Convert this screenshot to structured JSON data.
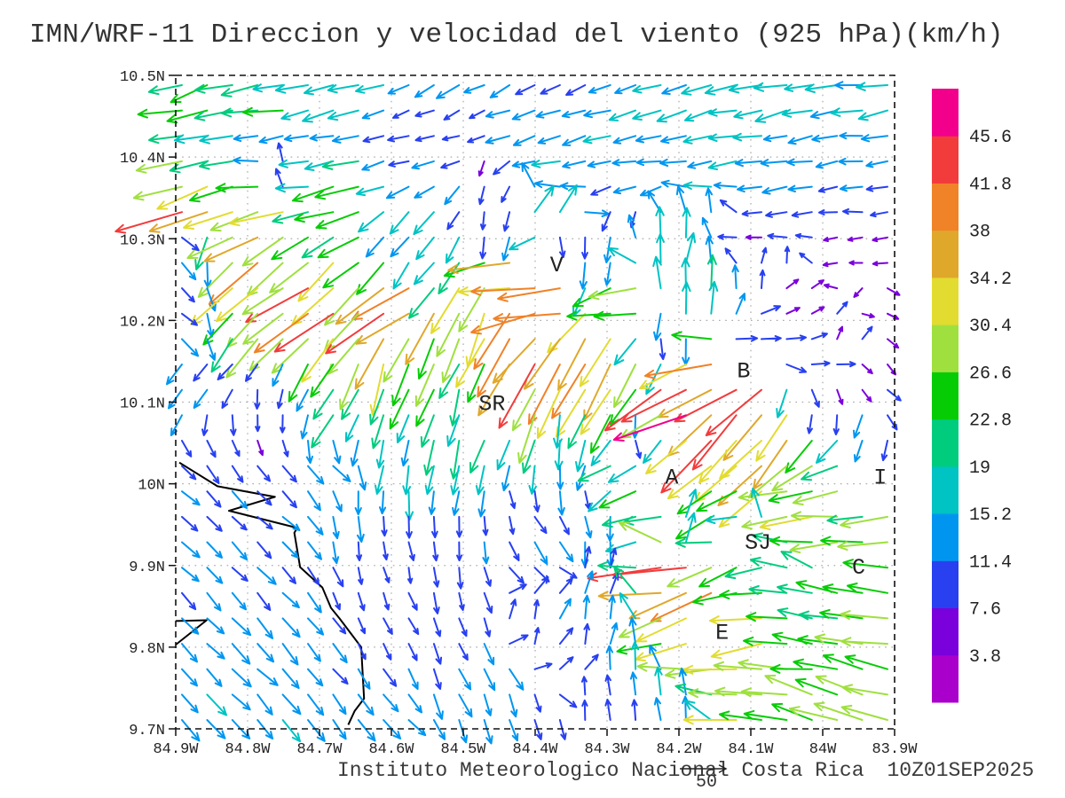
{
  "title": "IMN/WRF-11 Direccion y velocidad del viento (925 hPa)(km/h)",
  "footer": {
    "credit": "Instituto Meteorologico Nacional Costa Rica",
    "datetime": "10Z01SEP2025",
    "reference_value": "50"
  },
  "chart_data": {
    "type": "quiver",
    "model": "IMN/WRF-11",
    "variable": "Direccion y velocidad del viento",
    "level": "925 hPa",
    "units": "km/h",
    "valid_time": "10Z01SEP2025",
    "x_axis": {
      "ticks": [
        "84.9W",
        "84.8W",
        "84.7W",
        "84.6W",
        "84.5W",
        "84.4W",
        "84.3W",
        "84.2W",
        "84.1W",
        "84W",
        "83.9W"
      ],
      "lon_west_range": [
        84.9,
        83.9
      ]
    },
    "y_axis": {
      "ticks": [
        "10.5N",
        "10.4N",
        "10.3N",
        "10.2N",
        "10.1N",
        "10N",
        "9.9N",
        "9.8N",
        "9.7N"
      ],
      "lat_north_range": [
        10.5,
        9.7
      ]
    },
    "colorbar": {
      "tick_labels_top_to_bottom": [
        "45.6",
        "41.8",
        "38",
        "34.2",
        "30.4",
        "26.6",
        "22.8",
        "19",
        "15.2",
        "11.4",
        "7.6",
        "3.8"
      ],
      "levels_ascending": [
        3.8,
        7.6,
        11.4,
        15.2,
        19,
        22.8,
        26.6,
        30.4,
        34.2,
        38,
        41.8,
        45.6
      ],
      "colors_bottom_to_top": [
        "#AA00CC",
        "#7A00DC",
        "#2840F0",
        "#0096F0",
        "#00C3C3",
        "#00CC7E",
        "#06CC06",
        "#9FE03F",
        "#E2DC30",
        "#E0A82B",
        "#F08228",
        "#F23C3C",
        "#F2008C"
      ]
    },
    "cities": [
      {
        "label": "V",
        "lon_w": 84.37,
        "lat": 10.27
      },
      {
        "label": "B",
        "lon_w": 84.11,
        "lat": 10.14
      },
      {
        "label": "SR",
        "lon_w": 84.46,
        "lat": 10.1
      },
      {
        "label": "A",
        "lon_w": 84.21,
        "lat": 10.01
      },
      {
        "label": "SJ",
        "lon_w": 84.09,
        "lat": 9.93
      },
      {
        "label": "C",
        "lon_w": 83.95,
        "lat": 9.9
      },
      {
        "label": "E",
        "lon_w": 84.14,
        "lat": 9.82
      },
      {
        "label": "I",
        "lon_w": 83.92,
        "lat": 10.01
      }
    ],
    "coastline_lon_lat": [
      [
        84.895,
        10.026
      ],
      [
        84.842,
        9.997
      ],
      [
        84.762,
        9.984
      ],
      [
        84.826,
        9.967
      ],
      [
        84.731,
        9.946
      ],
      [
        84.735,
        9.94
      ],
      [
        84.727,
        9.898
      ],
      [
        84.696,
        9.873
      ],
      [
        84.684,
        9.848
      ],
      [
        84.672,
        9.835
      ],
      [
        84.642,
        9.8
      ],
      [
        84.638,
        9.737
      ],
      [
        84.651,
        9.722
      ],
      [
        84.66,
        9.705
      ]
    ],
    "coast_spit_lon_lat": [
      [
        84.9,
        9.832
      ],
      [
        84.857,
        9.833
      ],
      [
        84.9,
        9.803
      ]
    ],
    "grid": {
      "cols": 29,
      "rows": 26
    },
    "vector_format": [
      "lon_w",
      "lat",
      "direction_toward_deg_0E_90N",
      "speed_kmh"
    ],
    "vectors": [
      [
        84.88,
        10.49,
        200,
        22
      ],
      [
        84.8,
        10.49,
        195,
        20
      ],
      [
        84.72,
        10.49,
        190,
        18
      ],
      [
        84.62,
        10.49,
        195,
        17
      ],
      [
        84.52,
        10.49,
        205,
        13
      ],
      [
        84.44,
        10.49,
        205,
        11
      ],
      [
        84.36,
        10.49,
        205,
        12
      ],
      [
        84.28,
        10.49,
        200,
        13
      ],
      [
        84.18,
        10.49,
        195,
        15
      ],
      [
        84.08,
        10.49,
        190,
        17
      ],
      [
        83.96,
        10.49,
        188,
        17
      ],
      [
        84.88,
        10.46,
        190,
        24
      ],
      [
        84.78,
        10.46,
        185,
        22
      ],
      [
        84.68,
        10.46,
        195,
        16
      ],
      [
        84.58,
        10.46,
        205,
        9
      ],
      [
        84.5,
        10.46,
        210,
        8
      ],
      [
        84.42,
        10.46,
        195,
        12
      ],
      [
        84.34,
        10.46,
        195,
        13
      ],
      [
        84.26,
        10.46,
        192,
        14
      ],
      [
        84.16,
        10.46,
        195,
        16
      ],
      [
        84.04,
        10.46,
        192,
        17
      ],
      [
        83.94,
        10.46,
        190,
        16
      ],
      [
        84.88,
        10.42,
        195,
        19
      ],
      [
        84.78,
        10.42,
        190,
        14
      ],
      [
        84.68,
        10.42,
        185,
        12
      ],
      [
        84.58,
        10.42,
        190,
        10
      ],
      [
        84.5,
        10.42,
        185,
        8
      ],
      [
        84.42,
        10.42,
        200,
        12
      ],
      [
        84.34,
        10.42,
        195,
        13
      ],
      [
        84.26,
        10.42,
        190,
        14
      ],
      [
        84.16,
        10.42,
        192,
        15
      ],
      [
        84.06,
        10.42,
        190,
        14
      ],
      [
        83.94,
        10.42,
        185,
        12
      ],
      [
        84.88,
        10.38,
        195,
        27
      ],
      [
        84.76,
        10.38,
        90,
        8
      ],
      [
        84.66,
        10.38,
        195,
        23
      ],
      [
        84.56,
        10.38,
        200,
        12
      ],
      [
        84.46,
        10.38,
        255,
        8
      ],
      [
        84.36,
        10.38,
        192,
        14
      ],
      [
        84.26,
        10.38,
        190,
        14
      ],
      [
        84.16,
        10.38,
        192,
        14
      ],
      [
        84.06,
        10.38,
        190,
        13
      ],
      [
        83.94,
        10.38,
        188,
        11
      ],
      [
        84.88,
        10.34,
        203,
        42
      ],
      [
        84.78,
        10.34,
        196,
        34
      ],
      [
        84.68,
        10.34,
        188,
        25
      ],
      [
        84.56,
        10.34,
        222,
        16
      ],
      [
        84.46,
        10.34,
        258,
        8
      ],
      [
        84.37,
        10.34,
        55,
        18
      ],
      [
        84.26,
        10.34,
        262,
        8
      ],
      [
        84.16,
        10.34,
        95,
        13
      ],
      [
        84.06,
        10.34,
        185,
        10
      ],
      [
        83.94,
        10.34,
        183,
        9
      ],
      [
        84.89,
        10.3,
        315,
        10
      ],
      [
        84.8,
        10.3,
        212,
        31
      ],
      [
        84.7,
        10.3,
        218,
        23
      ],
      [
        84.58,
        10.3,
        228,
        15
      ],
      [
        84.46,
        10.3,
        262,
        11
      ],
      [
        84.34,
        10.3,
        272,
        10
      ],
      [
        84.22,
        10.3,
        85,
        16
      ],
      [
        84.1,
        10.3,
        185,
        8
      ],
      [
        83.96,
        10.3,
        185,
        7
      ],
      [
        84.89,
        10.26,
        316,
        10
      ],
      [
        84.79,
        10.26,
        220,
        34
      ],
      [
        84.68,
        10.26,
        224,
        29
      ],
      [
        84.56,
        10.26,
        234,
        18
      ],
      [
        84.44,
        10.26,
        186,
        33
      ],
      [
        84.32,
        10.26,
        262,
        13
      ],
      [
        84.2,
        10.26,
        80,
        17
      ],
      [
        84.08,
        10.26,
        80,
        8
      ],
      [
        83.94,
        10.26,
        185,
        6
      ],
      [
        84.89,
        10.22,
        317,
        10
      ],
      [
        84.8,
        10.22,
        228,
        29
      ],
      [
        84.7,
        10.22,
        214,
        40
      ],
      [
        84.58,
        10.22,
        212,
        42
      ],
      [
        84.48,
        10.22,
        248,
        31
      ],
      [
        84.38,
        10.22,
        184,
        37
      ],
      [
        84.28,
        10.22,
        186,
        26
      ],
      [
        84.16,
        10.22,
        92,
        17
      ],
      [
        84.04,
        10.22,
        25,
        7
      ],
      [
        83.93,
        10.22,
        340,
        6
      ],
      [
        84.89,
        10.18,
        310,
        11
      ],
      [
        84.78,
        10.18,
        226,
        32
      ],
      [
        84.66,
        10.18,
        230,
        30
      ],
      [
        84.55,
        10.18,
        252,
        28
      ],
      [
        84.44,
        10.18,
        236,
        41
      ],
      [
        84.33,
        10.18,
        238,
        37
      ],
      [
        84.22,
        10.18,
        278,
        11
      ],
      [
        84.1,
        10.18,
        5,
        9
      ],
      [
        83.97,
        10.18,
        60,
        7
      ],
      [
        84.89,
        10.14,
        228,
        12
      ],
      [
        84.8,
        10.14,
        230,
        11
      ],
      [
        84.76,
        10.14,
        240,
        12
      ],
      [
        84.7,
        10.14,
        235,
        22
      ],
      [
        84.62,
        10.14,
        250,
        29
      ],
      [
        84.5,
        10.14,
        242,
        24
      ],
      [
        84.4,
        10.14,
        236,
        41
      ],
      [
        84.3,
        10.14,
        240,
        34
      ],
      [
        84.13,
        10.14,
        186,
        38
      ],
      [
        84.02,
        10.14,
        357,
        9
      ],
      [
        83.92,
        10.14,
        312,
        6
      ],
      [
        84.89,
        10.1,
        235,
        11
      ],
      [
        84.78,
        10.1,
        268,
        8
      ],
      [
        84.74,
        10.1,
        272,
        8
      ],
      [
        84.68,
        10.1,
        240,
        20
      ],
      [
        84.62,
        10.1,
        252,
        18
      ],
      [
        84.5,
        10.1,
        258,
        19
      ],
      [
        84.4,
        10.1,
        250,
        29
      ],
      [
        84.3,
        10.1,
        244,
        28
      ],
      [
        84.19,
        10.1,
        206,
        46
      ],
      [
        84.1,
        10.1,
        228,
        41
      ],
      [
        84.0,
        10.1,
        282,
        8
      ],
      [
        83.91,
        10.1,
        318,
        8
      ],
      [
        84.89,
        10.06,
        300,
        10
      ],
      [
        84.78,
        10.06,
        285,
        8
      ],
      [
        84.62,
        10.06,
        262,
        15
      ],
      [
        84.48,
        10.06,
        254,
        20
      ],
      [
        84.36,
        10.06,
        264,
        15
      ],
      [
        84.26,
        10.06,
        288,
        9
      ],
      [
        84.15,
        10.06,
        226,
        38
      ],
      [
        84.05,
        10.06,
        234,
        31
      ],
      [
        83.95,
        10.06,
        250,
        12
      ],
      [
        83.9,
        10.06,
        256,
        10
      ],
      [
        84.89,
        10.02,
        314,
        11
      ],
      [
        84.78,
        10.02,
        315,
        10
      ],
      [
        84.68,
        10.02,
        316,
        11
      ],
      [
        84.58,
        10.02,
        264,
        16
      ],
      [
        84.48,
        10.02,
        256,
        18
      ],
      [
        84.38,
        10.02,
        264,
        14
      ],
      [
        84.28,
        10.02,
        202,
        20
      ],
      [
        84.18,
        10.02,
        214,
        28
      ],
      [
        84.08,
        10.02,
        224,
        32
      ],
      [
        83.98,
        10.02,
        202,
        25
      ],
      [
        83.9,
        10.02,
        196,
        25
      ],
      [
        84.89,
        9.98,
        315,
        11
      ],
      [
        84.77,
        9.98,
        314,
        10
      ],
      [
        84.65,
        9.98,
        270,
        13
      ],
      [
        84.54,
        9.98,
        266,
        12
      ],
      [
        84.44,
        9.98,
        280,
        8
      ],
      [
        84.34,
        9.98,
        290,
        10
      ],
      [
        84.24,
        9.98,
        196,
        22
      ],
      [
        84.14,
        9.98,
        210,
        25
      ],
      [
        84.04,
        9.98,
        192,
        28
      ],
      [
        83.93,
        9.98,
        186,
        22
      ],
      [
        84.89,
        9.94,
        315,
        12
      ],
      [
        84.77,
        9.94,
        314,
        11
      ],
      [
        84.62,
        9.94,
        280,
        9
      ],
      [
        84.5,
        9.94,
        272,
        10
      ],
      [
        84.4,
        9.94,
        300,
        12
      ],
      [
        84.3,
        9.94,
        272,
        13
      ],
      [
        84.2,
        9.94,
        62,
        14
      ],
      [
        84.1,
        9.94,
        86,
        12
      ],
      [
        84.0,
        9.94,
        186,
        28
      ],
      [
        83.9,
        9.94,
        190,
        30
      ],
      [
        84.89,
        9.9,
        315,
        12
      ],
      [
        84.77,
        9.9,
        314,
        12
      ],
      [
        84.62,
        9.9,
        284,
        8
      ],
      [
        84.5,
        9.9,
        280,
        10
      ],
      [
        84.4,
        9.9,
        312,
        10
      ],
      [
        84.3,
        9.9,
        80,
        10
      ],
      [
        84.22,
        9.9,
        186,
        47
      ],
      [
        84.12,
        9.9,
        200,
        24
      ],
      [
        84.01,
        9.9,
        152,
        20
      ],
      [
        83.91,
        9.9,
        170,
        25
      ],
      [
        84.89,
        9.86,
        314,
        12
      ],
      [
        84.76,
        9.86,
        314,
        12
      ],
      [
        84.61,
        9.86,
        290,
        8
      ],
      [
        84.5,
        9.86,
        286,
        10
      ],
      [
        84.4,
        9.86,
        55,
        10
      ],
      [
        84.3,
        9.86,
        75,
        12
      ],
      [
        84.17,
        9.85,
        206,
        37
      ],
      [
        84.06,
        9.86,
        172,
        22
      ],
      [
        83.92,
        9.86,
        164,
        22
      ],
      [
        84.89,
        9.82,
        313,
        12
      ],
      [
        84.76,
        9.82,
        313,
        13
      ],
      [
        84.6,
        9.82,
        300,
        9
      ],
      [
        84.5,
        9.82,
        292,
        10
      ],
      [
        84.41,
        9.82,
        88,
        9
      ],
      [
        84.31,
        9.82,
        80,
        12
      ],
      [
        84.2,
        9.82,
        202,
        31
      ],
      [
        84.1,
        9.82,
        188,
        28
      ],
      [
        84.0,
        9.82,
        172,
        20
      ],
      [
        83.9,
        9.82,
        176,
        28
      ],
      [
        84.89,
        9.78,
        313,
        13
      ],
      [
        84.76,
        9.78,
        314,
        13
      ],
      [
        84.56,
        9.78,
        295,
        12
      ],
      [
        84.46,
        9.78,
        295,
        12
      ],
      [
        84.36,
        9.78,
        48,
        9
      ],
      [
        84.26,
        9.78,
        88,
        14
      ],
      [
        84.15,
        9.78,
        186,
        30
      ],
      [
        84.05,
        9.78,
        176,
        25
      ],
      [
        83.92,
        9.78,
        162,
        25
      ],
      [
        84.89,
        9.73,
        313,
        14
      ],
      [
        84.76,
        9.73,
        313,
        14
      ],
      [
        84.6,
        9.73,
        315,
        13
      ],
      [
        84.5,
        9.73,
        292,
        14
      ],
      [
        84.4,
        9.73,
        282,
        10
      ],
      [
        84.3,
        9.73,
        92,
        10
      ],
      [
        84.2,
        9.73,
        96,
        13
      ],
      [
        84.1,
        9.73,
        172,
        28
      ],
      [
        83.98,
        9.73,
        162,
        28
      ],
      [
        83.9,
        9.73,
        167,
        25
      ]
    ]
  }
}
